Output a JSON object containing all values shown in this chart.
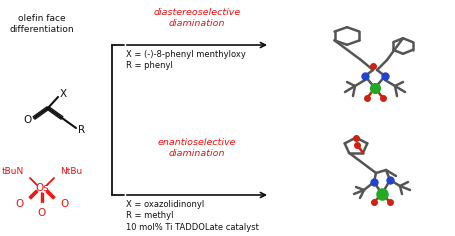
{
  "bg_color": "#ffffff",
  "text_olefin": "olefin face\ndifferentiation",
  "text_diastereo_title": "diastereoselective\ndiamination",
  "text_enantio_title": "enantioselective\ndiamination",
  "text_diastereo_cond": "X = (-)-8-phenyl menthyloxy\nR = phenyl",
  "text_enantio_cond": "X = oxazolidinonyl\nR = methyl\n10 mol% Ti TADDOLate catalyst",
  "red_color": "#ee1111",
  "black_color": "#111111",
  "gray_color": "#444444",
  "blue_color": "#2244cc",
  "green_color": "#22aa22",
  "dark_red": "#cc2211",
  "fig_width": 4.56,
  "fig_height": 2.36,
  "dpi": 100
}
